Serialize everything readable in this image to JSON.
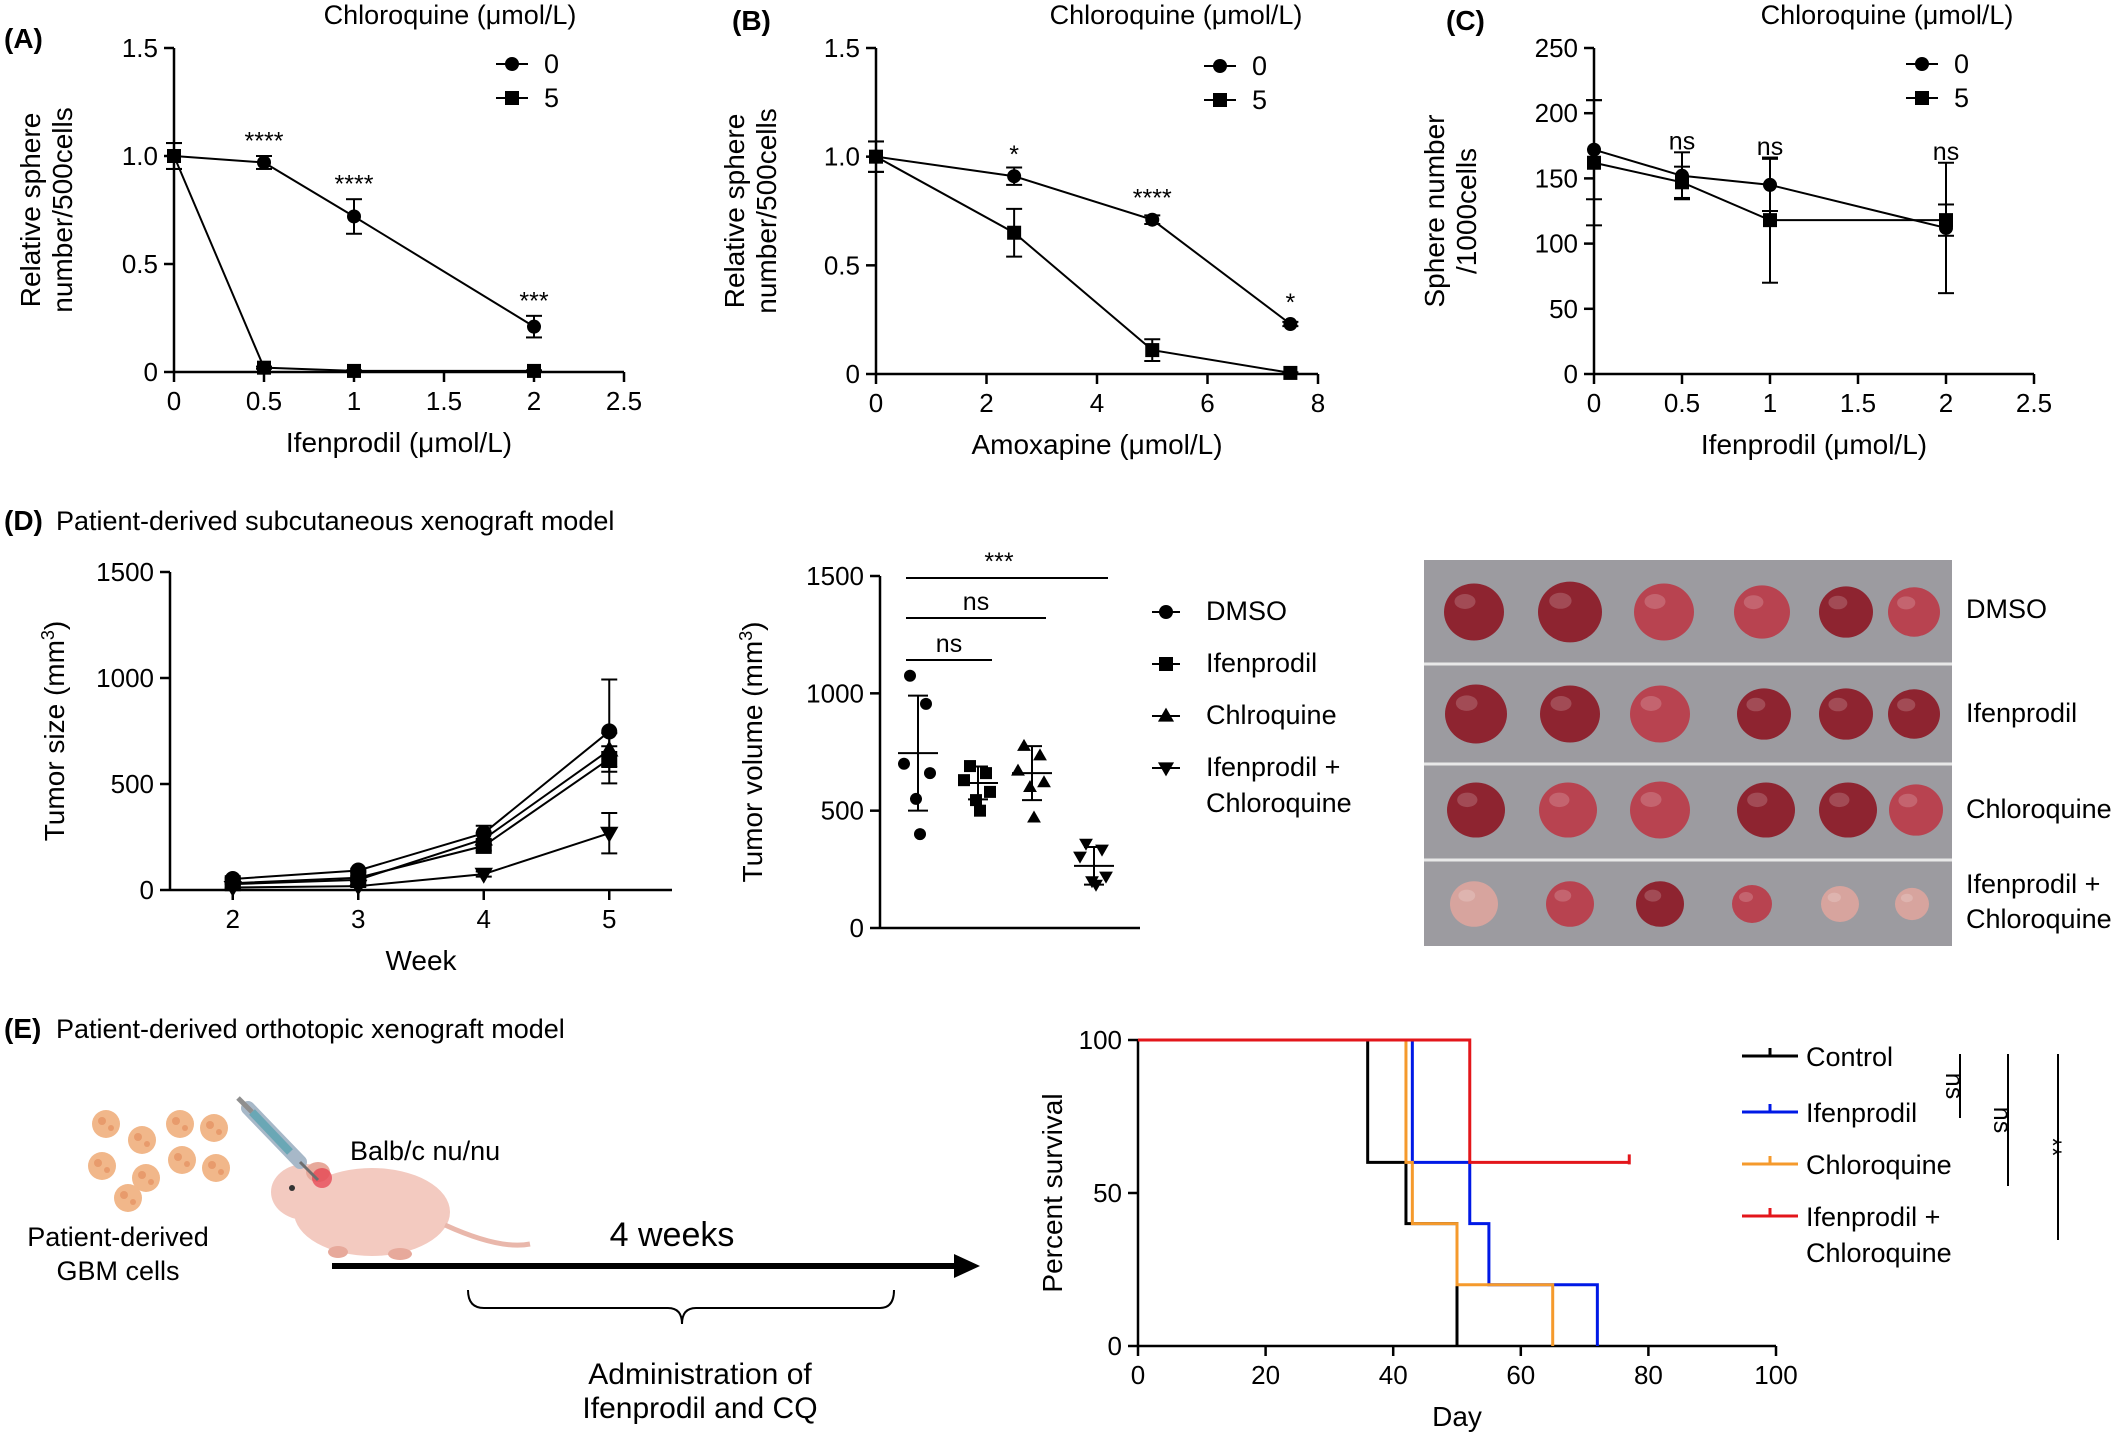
{
  "panels": {
    "A": {
      "label": "(A)"
    },
    "B": {
      "label": "(B)"
    },
    "C": {
      "label": "(C)"
    },
    "D": {
      "label": "(D)",
      "title": "Patient-derived subcutaneous xenograft model"
    },
    "E": {
      "label": "(E)",
      "title": "Patient-derived orthotopic xenograft model"
    }
  },
  "colors": {
    "black": "#000000",
    "control": "#000000",
    "ifenprodil": "#0019e6",
    "chloroquine": "#f59a2c",
    "combo": "#e3161b",
    "tumor_dark": "#8e2430",
    "tumor_mid": "#b84350",
    "tumor_light": "#d7a49e",
    "photo_bg": "#9c9ba0",
    "mouse": "#f3cac0",
    "cells": "#f1b78a"
  },
  "chart_data": [
    {
      "id": "A",
      "type": "line",
      "title": "Chloroquine (μmol/L)",
      "xlabel": "Ifenprodil (μmol/L)",
      "ylabel": "Relative sphere number/500cells",
      "ylabel_lines": [
        "Relative sphere",
        "number/500cells"
      ],
      "xlim": [
        0,
        2.5
      ],
      "ylim": [
        0,
        1.5
      ],
      "xticks": [
        "0",
        "0.5",
        "1",
        "1.5",
        "2",
        "2.5"
      ],
      "yticks": [
        "0",
        "0.5",
        "1.0",
        "1.5"
      ],
      "legend_position": "top-right",
      "series": [
        {
          "name": "0",
          "marker": "circle",
          "x": [
            0,
            0.5,
            1,
            2
          ],
          "y": [
            1.0,
            0.97,
            0.72,
            0.21
          ],
          "err": [
            0.06,
            0.03,
            0.08,
            0.05
          ]
        },
        {
          "name": "5",
          "marker": "square",
          "x": [
            0,
            0.5,
            1,
            2
          ],
          "y": [
            1.0,
            0.02,
            0.005,
            0.005
          ],
          "err": [
            0.06,
            0.005,
            0.003,
            0.003
          ]
        }
      ],
      "annotations": [
        {
          "x": 0.5,
          "y": 1.03,
          "text": "****"
        },
        {
          "x": 1,
          "y": 0.83,
          "text": "****"
        },
        {
          "x": 2,
          "y": 0.29,
          "text": "***"
        }
      ]
    },
    {
      "id": "B",
      "type": "line",
      "title": "Chloroquine (μmol/L)",
      "xlabel": "Amoxapine (μmol/L)",
      "ylabel": "Relative sphere number/500cells",
      "ylabel_lines": [
        "Relative sphere",
        "number/500cells"
      ],
      "xlim": [
        0,
        8
      ],
      "ylim": [
        0,
        1.5
      ],
      "xticks": [
        "0",
        "2",
        "4",
        "6",
        "8"
      ],
      "yticks": [
        "0",
        "0.5",
        "1.0",
        "1.5"
      ],
      "legend_position": "top-right",
      "series": [
        {
          "name": "0",
          "marker": "circle",
          "x": [
            0,
            2.5,
            5,
            7.5
          ],
          "y": [
            1.0,
            0.91,
            0.71,
            0.23
          ],
          "err": [
            0.07,
            0.04,
            0.02,
            0.01
          ]
        },
        {
          "name": "5",
          "marker": "square",
          "x": [
            0,
            2.5,
            5,
            7.5
          ],
          "y": [
            1.0,
            0.65,
            0.11,
            0.005
          ],
          "err": [
            0.07,
            0.11,
            0.05,
            0.003
          ]
        }
      ],
      "annotations": [
        {
          "x": 2.5,
          "y": 0.97,
          "text": "*"
        },
        {
          "x": 5,
          "y": 0.77,
          "text": "****"
        },
        {
          "x": 7.5,
          "y": 0.29,
          "text": "*"
        }
      ]
    },
    {
      "id": "C",
      "type": "line",
      "title": "Chloroquine (μmol/L)",
      "xlabel": "Ifenprodil (μmol/L)",
      "ylabel": "Sphere number/1000cells",
      "ylabel_lines": [
        "Sphere number",
        "/1000cells"
      ],
      "xlim": [
        0,
        2.5
      ],
      "ylim": [
        0,
        250
      ],
      "xticks": [
        "0",
        "0.5",
        "1",
        "1.5",
        "2",
        "2.5"
      ],
      "yticks": [
        "0",
        "50",
        "100",
        "150",
        "200",
        "250"
      ],
      "legend_position": "top-right",
      "series": [
        {
          "name": "0",
          "marker": "circle",
          "x": [
            0,
            0.5,
            1,
            2
          ],
          "y": [
            172,
            152,
            145,
            112
          ],
          "err": [
            38,
            18,
            20,
            50
          ]
        },
        {
          "name": "5",
          "marker": "square",
          "x": [
            0,
            0.5,
            1,
            2
          ],
          "y": [
            162,
            147,
            118,
            118
          ],
          "err": [
            48,
            12,
            48,
            12
          ]
        }
      ],
      "annotations": [
        {
          "x": 0.5,
          "y": 172,
          "text": "ns"
        },
        {
          "x": 1,
          "y": 168,
          "text": "ns"
        },
        {
          "x": 2,
          "y": 164,
          "text": "ns"
        }
      ]
    },
    {
      "id": "D1",
      "type": "line",
      "xlabel": "Week",
      "ylabel": "Tumor size (mm³)",
      "ylabel_parts": [
        "Tumor size (mm",
        "3",
        ")"
      ],
      "xlim": [
        1.5,
        5.5
      ],
      "ylim": [
        0,
        1500
      ],
      "xticks": [
        "2",
        "3",
        "4",
        "5"
      ],
      "yticks": [
        "0",
        "500",
        "1000",
        "1500"
      ],
      "series": [
        {
          "name": "DMSO",
          "marker": "circle",
          "x": [
            2,
            3,
            4,
            5
          ],
          "y": [
            52,
            92,
            268,
            748
          ],
          "err": [
            6,
            8,
            35,
            245
          ]
        },
        {
          "name": "Ifenprodil",
          "marker": "square",
          "x": [
            2,
            3,
            4,
            5
          ],
          "y": [
            32,
            58,
            208,
            618
          ],
          "err": [
            4,
            6,
            22,
            60
          ]
        },
        {
          "name": "Chlroquine",
          "marker": "triangle",
          "x": [
            2,
            3,
            4,
            5
          ],
          "y": [
            28,
            48,
            240,
            660
          ],
          "err": [
            4,
            6,
            28,
            80
          ]
        },
        {
          "name": "Ifenprodil + Chloroquine",
          "marker": "triangle-down",
          "x": [
            2,
            3,
            4,
            5
          ],
          "y": [
            12,
            18,
            75,
            268
          ],
          "err": [
            3,
            4,
            12,
            95
          ]
        }
      ]
    },
    {
      "id": "D2",
      "type": "scatter",
      "ylabel": "Tumor volume (mm³)",
      "ylabel_parts": [
        "Tumor volume (mm",
        "3",
        ")"
      ],
      "ylim": [
        0,
        1500
      ],
      "yticks": [
        "0",
        "500",
        "1000",
        "1500"
      ],
      "legend_position": "right",
      "groups": [
        {
          "name": "DMSO",
          "marker": "circle",
          "points": [
            1075,
            955,
            700,
            660,
            550,
            400
          ],
          "mean": 745,
          "sd": 245
        },
        {
          "name": "Ifenprodil",
          "marker": "square",
          "points": [
            690,
            660,
            630,
            580,
            545,
            500
          ],
          "mean": 618,
          "sd": 70
        },
        {
          "name": "Chlroquine",
          "marker": "triangle",
          "points": [
            775,
            735,
            670,
            620,
            600,
            470
          ],
          "mean": 660,
          "sd": 115
        },
        {
          "name": "Ifenprodil + Chloroquine",
          "marker": "triangle-down",
          "points": [
            360,
            335,
            305,
            220,
            200,
            185
          ],
          "mean": 265,
          "sd": 80
        }
      ],
      "legend": [
        "DMSO",
        "Ifenprodil",
        "Chlroquine",
        "Ifenprodil +",
        "Chloroquine"
      ],
      "comparisons": [
        {
          "from": 0,
          "to": 1,
          "text": "ns"
        },
        {
          "from": 0,
          "to": 2,
          "text": "ns"
        },
        {
          "from": 0,
          "to": 3,
          "text": "***"
        }
      ]
    },
    {
      "id": "E",
      "type": "line",
      "xlabel": "Day",
      "ylabel": "Percent survival",
      "xlim": [
        0,
        100
      ],
      "ylim": [
        0,
        100
      ],
      "xticks": [
        "0",
        "20",
        "40",
        "60",
        "80",
        "100"
      ],
      "yticks": [
        "0",
        "50",
        "100"
      ],
      "legend_position": "right",
      "series": [
        {
          "name": "Control",
          "color": "#000000",
          "steps": [
            [
              0,
              100
            ],
            [
              36,
              100
            ],
            [
              36,
              60
            ],
            [
              42,
              60
            ],
            [
              42,
              40
            ],
            [
              50,
              40
            ],
            [
              50,
              0
            ]
          ],
          "censor": []
        },
        {
          "name": "Ifenprodil",
          "color": "#0019e6",
          "steps": [
            [
              0,
              100
            ],
            [
              43,
              100
            ],
            [
              43,
              60
            ],
            [
              52,
              60
            ],
            [
              52,
              40
            ],
            [
              55,
              40
            ],
            [
              55,
              20
            ],
            [
              72,
              20
            ],
            [
              72,
              0
            ]
          ],
          "censor": []
        },
        {
          "name": "Chloroquine",
          "color": "#f59a2c",
          "steps": [
            [
              0,
              100
            ],
            [
              42,
              100
            ],
            [
              42,
              60
            ],
            [
              43,
              60
            ],
            [
              43,
              40
            ],
            [
              50,
              40
            ],
            [
              50,
              20
            ],
            [
              65,
              20
            ],
            [
              65,
              0
            ]
          ],
          "censor": []
        },
        {
          "name": "Ifenprodil + Chloroquine",
          "color": "#e3161b",
          "steps": [
            [
              0,
              100
            ],
            [
              52,
              100
            ],
            [
              52,
              60
            ],
            [
              77,
              60
            ]
          ],
          "censor": [
            [
              77,
              60
            ]
          ]
        }
      ],
      "legend": [
        "Control",
        "Ifenprodil",
        "Chloroquine",
        "Ifenprodil +",
        "Chloroquine"
      ],
      "brackets": [
        "ns",
        "ns",
        "**"
      ]
    }
  ],
  "photo": {
    "rows": [
      "DMSO",
      "Ifenprodil",
      "Chloroquine",
      "Ifenprodil +"
    ],
    "last_row_second_line": "Chloroquine"
  },
  "schematic": {
    "mouse_label": "Balb/c nu/nu",
    "cells_label_line1": "Patient-derived",
    "cells_label_line2": "GBM cells",
    "duration": "4 weeks",
    "admin_line1": "Administration of",
    "admin_line2": "Ifenprodil and CQ"
  }
}
